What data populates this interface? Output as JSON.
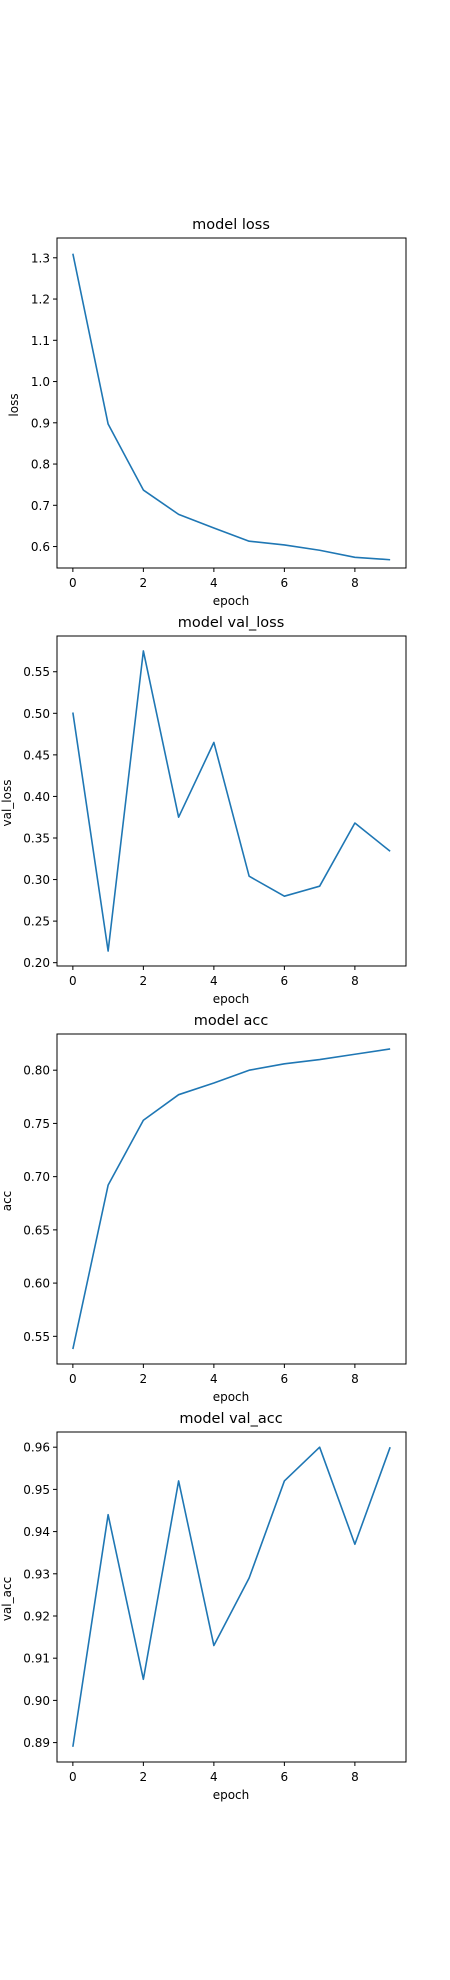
{
  "chart_data": [
    {
      "type": "line",
      "title": "model loss",
      "xlabel": "epoch",
      "ylabel": "loss",
      "x": [
        0,
        1,
        2,
        3,
        4,
        5,
        6,
        7,
        8,
        9
      ],
      "series": [
        {
          "values": [
            1.31,
            0.897,
            0.737,
            0.678,
            0.645,
            0.613,
            0.604,
            0.591,
            0.574,
            0.568
          ]
        }
      ],
      "xlim": [
        -0.45,
        9.45
      ],
      "ylim": [
        0.548,
        1.348
      ],
      "xticks": [
        0,
        2,
        4,
        6,
        8
      ],
      "yticks": [
        0.6,
        0.7,
        0.8,
        0.9,
        1.0,
        1.1,
        1.2,
        1.3
      ],
      "ytick_labels": [
        "0.6",
        "0.7",
        "0.8",
        "0.9",
        "1.0",
        "1.1",
        "1.2",
        "1.3"
      ],
      "grid": false,
      "color": "#1f77b4"
    },
    {
      "type": "line",
      "title": "model val_loss",
      "xlabel": "epoch",
      "ylabel": "val_loss",
      "x": [
        0,
        1,
        2,
        3,
        4,
        5,
        6,
        7,
        8,
        9
      ],
      "series": [
        {
          "values": [
            0.501,
            0.214,
            0.575,
            0.375,
            0.465,
            0.304,
            0.28,
            0.292,
            0.368,
            0.334
          ]
        }
      ],
      "xlim": [
        -0.45,
        9.45
      ],
      "ylim": [
        0.196,
        0.593
      ],
      "xticks": [
        0,
        2,
        4,
        6,
        8
      ],
      "yticks": [
        0.2,
        0.25,
        0.3,
        0.35,
        0.4,
        0.45,
        0.5,
        0.55
      ],
      "ytick_labels": [
        "0.20",
        "0.25",
        "0.30",
        "0.35",
        "0.40",
        "0.45",
        "0.50",
        "0.55"
      ],
      "grid": false,
      "color": "#1f77b4"
    },
    {
      "type": "line",
      "title": "model acc",
      "xlabel": "epoch",
      "ylabel": "acc",
      "x": [
        0,
        1,
        2,
        3,
        4,
        5,
        6,
        7,
        8,
        9
      ],
      "series": [
        {
          "values": [
            0.538,
            0.692,
            0.753,
            0.777,
            0.788,
            0.8,
            0.806,
            0.81,
            0.815,
            0.82
          ]
        }
      ],
      "xlim": [
        -0.45,
        9.45
      ],
      "ylim": [
        0.524,
        0.834
      ],
      "xticks": [
        0,
        2,
        4,
        6,
        8
      ],
      "yticks": [
        0.55,
        0.6,
        0.65,
        0.7,
        0.75,
        0.8
      ],
      "ytick_labels": [
        "0.55",
        "0.60",
        "0.65",
        "0.70",
        "0.75",
        "0.80"
      ],
      "grid": false,
      "color": "#1f77b4"
    },
    {
      "type": "line",
      "title": "model val_acc",
      "xlabel": "epoch",
      "ylabel": "val_acc",
      "x": [
        0,
        1,
        2,
        3,
        4,
        5,
        6,
        7,
        8,
        9
      ],
      "series": [
        {
          "values": [
            0.889,
            0.944,
            0.905,
            0.952,
            0.913,
            0.929,
            0.952,
            0.96,
            0.937,
            0.96
          ]
        }
      ],
      "xlim": [
        -0.45,
        9.45
      ],
      "ylim": [
        0.8854,
        0.9636
      ],
      "xticks": [
        0,
        2,
        4,
        6,
        8
      ],
      "yticks": [
        0.89,
        0.9,
        0.91,
        0.92,
        0.93,
        0.94,
        0.95,
        0.96
      ],
      "ytick_labels": [
        "0.89",
        "0.90",
        "0.91",
        "0.92",
        "0.93",
        "0.94",
        "0.95",
        "0.96"
      ],
      "grid": false,
      "color": "#1f77b4"
    }
  ]
}
